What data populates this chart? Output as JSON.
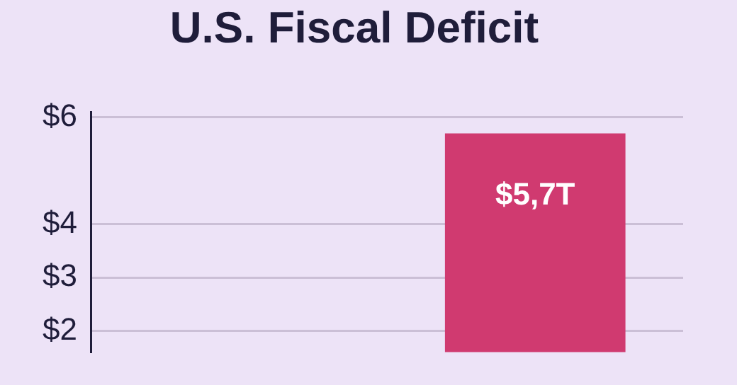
{
  "chart_data": {
    "type": "bar",
    "title": "U.S. Fiscal Deficit",
    "categories": [
      null,
      null
    ],
    "values": [
      null,
      5.7
    ],
    "color": "#d03a70",
    "value_labels": [
      null,
      "$5,7T"
    ],
    "ylim": [
      1.6,
      6.1
    ],
    "yticks": [
      {
        "value": 2,
        "label": "$2"
      },
      {
        "value": 3,
        "label": "$3"
      },
      {
        "value": 4,
        "label": "$4"
      },
      {
        "value": 6,
        "label": "$6"
      }
    ],
    "grid": "y",
    "tick_labels": "y"
  }
}
